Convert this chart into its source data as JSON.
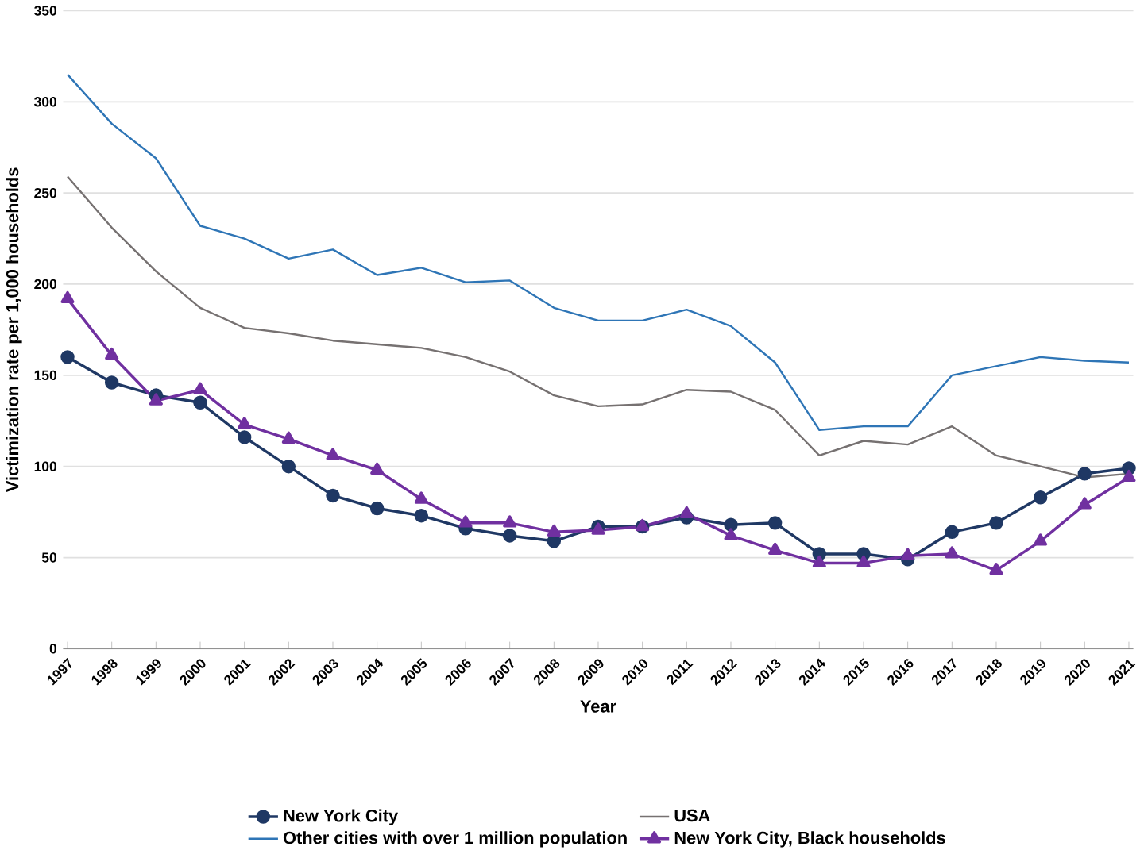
{
  "chart_data": {
    "type": "line",
    "xlabel": "Year",
    "ylabel": "Victimization rate per 1,000 households",
    "categories": [
      "1997",
      "1998",
      "1999",
      "2000",
      "2001",
      "2002",
      "2003",
      "2004",
      "2005",
      "2006",
      "2007",
      "2008",
      "2009",
      "2010",
      "2011",
      "2012",
      "2013",
      "2014",
      "2015",
      "2016",
      "2017",
      "2018",
      "2019",
      "2020",
      "2021"
    ],
    "series": [
      {
        "name": "New York City",
        "color": "#1f3864",
        "marker": "circle",
        "values": [
          160,
          146,
          139,
          135,
          116,
          100,
          84,
          77,
          73,
          66,
          62,
          59,
          67,
          67,
          72,
          68,
          69,
          52,
          52,
          49,
          64,
          69,
          83,
          96,
          99
        ]
      },
      {
        "name": "USA",
        "color": "#767171",
        "marker": "none",
        "values": [
          259,
          231,
          207,
          187,
          176,
          173,
          169,
          167,
          165,
          160,
          152,
          139,
          133,
          134,
          142,
          141,
          131,
          106,
          114,
          112,
          122,
          106,
          100,
          94,
          96
        ]
      },
      {
        "name": "Other cities with over 1 million population",
        "color": "#2e75b6",
        "marker": "none",
        "values": [
          315,
          288,
          269,
          232,
          225,
          214,
          219,
          205,
          209,
          201,
          202,
          187,
          180,
          180,
          186,
          177,
          157,
          120,
          122,
          122,
          150,
          155,
          160,
          158,
          157
        ]
      },
      {
        "name": "New York City, Black households",
        "color": "#7030a0",
        "marker": "triangle",
        "values": [
          192,
          161,
          136,
          142,
          123,
          115,
          106,
          98,
          82,
          69,
          69,
          64,
          65,
          67,
          74,
          62,
          54,
          47,
          47,
          51,
          52,
          43,
          59,
          79,
          94
        ]
      }
    ],
    "ylim": [
      0,
      350
    ],
    "yticks": [
      0,
      50,
      100,
      150,
      200,
      250,
      300,
      350
    ],
    "grid": "y",
    "legend": "bottom"
  }
}
